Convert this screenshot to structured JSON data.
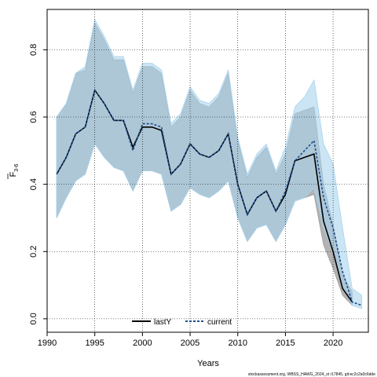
{
  "chart_data": {
    "type": "line",
    "xlabel": "Years",
    "ylabel_main": "F",
    "ylabel_sub": "3-6",
    "xlim": [
      1990,
      2023.7
    ],
    "ylim": [
      -0.04,
      0.92
    ],
    "xticks": [
      1990,
      1995,
      2000,
      2005,
      2010,
      2015,
      2020
    ],
    "yticks": [
      0.0,
      0.2,
      0.4,
      0.6,
      0.8
    ],
    "grid": true,
    "legend_position": "bottom-center",
    "colors": {
      "lastY_band": "#9a9a9a",
      "current_band": "#a8d4ee",
      "current_line": "#1f4e8c",
      "overlap": "#9cbdd0"
    },
    "series": [
      {
        "name": "lastY",
        "style": "solid",
        "x": [
          1991,
          1992,
          1993,
          1994,
          1995,
          1996,
          1997,
          1998,
          1999,
          2000,
          2001,
          2002,
          2003,
          2004,
          2005,
          2006,
          2007,
          2008,
          2009,
          2010,
          2011,
          2012,
          2013,
          2014,
          2015,
          2016,
          2017,
          2018,
          2019,
          2020,
          2021,
          2022
        ],
        "median": [
          0.43,
          0.48,
          0.55,
          0.57,
          0.68,
          0.64,
          0.59,
          0.59,
          0.51,
          0.57,
          0.57,
          0.56,
          0.43,
          0.46,
          0.52,
          0.49,
          0.48,
          0.5,
          0.55,
          0.4,
          0.31,
          0.36,
          0.38,
          0.32,
          0.37,
          0.47,
          0.48,
          0.49,
          0.29,
          0.2,
          0.09,
          0.05
        ],
        "lower": [
          0.3,
          0.36,
          0.41,
          0.43,
          0.52,
          0.48,
          0.45,
          0.44,
          0.38,
          0.44,
          0.44,
          0.43,
          0.32,
          0.34,
          0.39,
          0.37,
          0.36,
          0.38,
          0.41,
          0.3,
          0.23,
          0.27,
          0.28,
          0.23,
          0.28,
          0.35,
          0.36,
          0.37,
          0.22,
          0.15,
          0.07,
          0.04
        ],
        "upper": [
          0.6,
          0.64,
          0.73,
          0.74,
          0.88,
          0.83,
          0.77,
          0.77,
          0.67,
          0.75,
          0.75,
          0.73,
          0.57,
          0.6,
          0.68,
          0.64,
          0.63,
          0.66,
          0.73,
          0.53,
          0.42,
          0.48,
          0.51,
          0.43,
          0.49,
          0.61,
          0.62,
          0.63,
          0.4,
          0.28,
          0.13,
          0.08
        ]
      },
      {
        "name": "current",
        "style": "dotted",
        "x": [
          1991,
          1992,
          1993,
          1994,
          1995,
          1996,
          1997,
          1998,
          1999,
          2000,
          2001,
          2002,
          2003,
          2004,
          2005,
          2006,
          2007,
          2008,
          2009,
          2010,
          2011,
          2012,
          2013,
          2014,
          2015,
          2016,
          2017,
          2018,
          2019,
          2020,
          2021,
          2022,
          2023
        ],
        "median": [
          0.43,
          0.48,
          0.55,
          0.57,
          0.68,
          0.64,
          0.59,
          0.59,
          0.5,
          0.58,
          0.58,
          0.57,
          0.43,
          0.46,
          0.52,
          0.49,
          0.48,
          0.5,
          0.55,
          0.4,
          0.31,
          0.36,
          0.38,
          0.32,
          0.38,
          0.47,
          0.5,
          0.53,
          0.36,
          0.27,
          0.14,
          0.05,
          0.04
        ],
        "lower": [
          0.3,
          0.36,
          0.41,
          0.43,
          0.52,
          0.48,
          0.45,
          0.44,
          0.38,
          0.44,
          0.44,
          0.43,
          0.32,
          0.34,
          0.39,
          0.37,
          0.36,
          0.38,
          0.41,
          0.3,
          0.23,
          0.27,
          0.28,
          0.23,
          0.28,
          0.35,
          0.36,
          0.39,
          0.27,
          0.2,
          0.1,
          0.04,
          0.03
        ],
        "upper": [
          0.6,
          0.64,
          0.73,
          0.75,
          0.89,
          0.84,
          0.78,
          0.78,
          0.68,
          0.76,
          0.76,
          0.74,
          0.58,
          0.61,
          0.69,
          0.65,
          0.64,
          0.67,
          0.74,
          0.54,
          0.43,
          0.49,
          0.52,
          0.44,
          0.51,
          0.63,
          0.66,
          0.71,
          0.52,
          0.46,
          0.27,
          0.09,
          0.07
        ]
      }
    ]
  },
  "footer": {
    "text": "stockassessment.org, WBSS_HAWG_2024_st r17845, git:ec2c2a0c6dde"
  }
}
